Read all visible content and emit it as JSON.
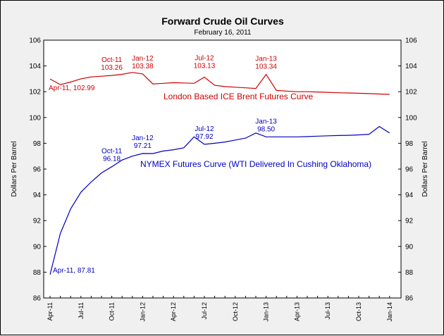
{
  "chart_data": {
    "type": "line",
    "title": "Forward Crude Oil Curves",
    "subtitle": "February 16, 2011",
    "ylabel": "Dollars Per Barrel",
    "ylim": [
      86,
      106
    ],
    "yticks": [
      86,
      88,
      90,
      92,
      94,
      96,
      98,
      100,
      102,
      104,
      106
    ],
    "xticks": [
      "Apr-11",
      "Jul-11",
      "Oct-11",
      "Jan-12",
      "Apr-12",
      "Jul-12",
      "Oct-12",
      "Jan-13",
      "Apr-13",
      "Jul-13",
      "Oct-13",
      "Jan-14"
    ],
    "x_months": [
      "Apr-11",
      "May-11",
      "Jun-11",
      "Jul-11",
      "Aug-11",
      "Sep-11",
      "Oct-11",
      "Nov-11",
      "Dec-11",
      "Jan-12",
      "Feb-12",
      "Mar-12",
      "Apr-12",
      "May-12",
      "Jun-12",
      "Jul-12",
      "Aug-12",
      "Sep-12",
      "Oct-12",
      "Nov-12",
      "Dec-12",
      "Jan-13",
      "Feb-13",
      "Mar-13",
      "Apr-13",
      "May-13",
      "Jun-13",
      "Jul-13",
      "Aug-13",
      "Sep-13",
      "Oct-13",
      "Nov-13",
      "Dec-13",
      "Jan-14"
    ],
    "grid": false,
    "series": [
      {
        "name": "London Based ICE Brent Futures Curve",
        "color": "#d00000",
        "values": [
          102.99,
          102.55,
          102.75,
          103.0,
          103.15,
          103.2,
          103.26,
          103.35,
          103.5,
          103.38,
          102.6,
          102.65,
          102.7,
          102.68,
          102.65,
          103.13,
          102.5,
          102.4,
          102.35,
          102.3,
          102.25,
          103.34,
          102.1,
          102.05,
          102.0,
          102.0,
          101.98,
          101.95,
          101.92,
          101.9,
          101.88,
          101.85,
          101.82,
          101.8
        ]
      },
      {
        "name": "NYMEX Futures Curve (WTI Delivered In Cushing Oklahoma)",
        "color": "#0000c0",
        "values": [
          87.81,
          91.0,
          92.9,
          94.2,
          95.0,
          95.7,
          96.18,
          96.7,
          97.0,
          97.21,
          97.2,
          97.4,
          97.5,
          97.65,
          98.5,
          97.92,
          98.0,
          98.1,
          98.25,
          98.4,
          98.8,
          98.5,
          98.5,
          98.5,
          98.5,
          98.52,
          98.55,
          98.58,
          98.6,
          98.62,
          98.65,
          98.7,
          99.3,
          98.8
        ]
      }
    ],
    "annotations": [
      {
        "series": 0,
        "index": 0,
        "text": "Apr-11, 102.99",
        "pos": "below-right"
      },
      {
        "series": 0,
        "index": 6,
        "lines": [
          "Oct-11",
          "103.26"
        ],
        "pos": "above"
      },
      {
        "series": 0,
        "index": 9,
        "lines": [
          "Jan-12",
          "103.38"
        ],
        "pos": "above"
      },
      {
        "series": 0,
        "index": 15,
        "lines": [
          "Jul-12",
          "103.13"
        ],
        "pos": "below"
      },
      {
        "series": 0,
        "index": 21,
        "lines": [
          "Jan-13",
          "103.34"
        ],
        "pos": "above"
      },
      {
        "series": 1,
        "index": 0,
        "text": "Apr-11, 87.81",
        "pos": "right"
      },
      {
        "series": 1,
        "index": 6,
        "lines": [
          "Oct-11",
          "96.18"
        ],
        "pos": "above"
      },
      {
        "series": 1,
        "index": 9,
        "lines": [
          "Jan-12",
          "97.21"
        ],
        "pos": "above"
      },
      {
        "series": 1,
        "index": 15,
        "lines": [
          "Jul-12",
          "97.92"
        ],
        "pos": "above"
      },
      {
        "series": 1,
        "index": 21,
        "lines": [
          "Jan-13",
          "98.50"
        ],
        "pos": "above"
      }
    ]
  }
}
